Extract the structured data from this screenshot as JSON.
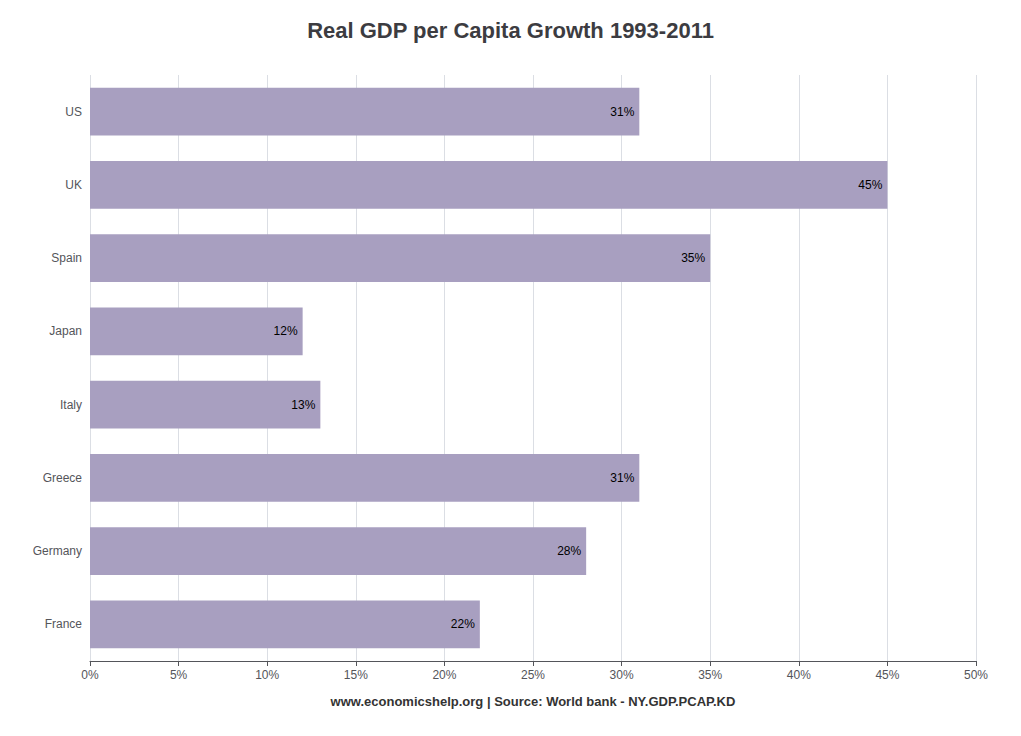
{
  "chart_data": {
    "type": "bar",
    "orientation": "horizontal",
    "title": "Real GDP per Capita Growth 1993-2011",
    "xlabel": "www.economicshelp.org | Source: World bank - NY.GDP.PCAP.KD",
    "categories": [
      "US",
      "UK",
      "Spain",
      "Japan",
      "Italy",
      "Greece",
      "Germany",
      "France"
    ],
    "values": [
      0.31,
      0.45,
      0.35,
      0.12,
      0.13,
      0.31,
      0.28,
      0.22
    ],
    "value_labels": [
      "31%",
      "45%",
      "35%",
      "12%",
      "13%",
      "31%",
      "28%",
      "22%"
    ],
    "data_labels": true,
    "color": "#a89fc0",
    "xlim": [
      0,
      0.5
    ],
    "xticks": [
      {
        "value": 0,
        "label": "0%"
      },
      {
        "value": 0.05,
        "label": "5%"
      },
      {
        "value": 0.1,
        "label": "10%"
      },
      {
        "value": 0.15,
        "label": "15%"
      },
      {
        "value": 0.2,
        "label": "20%"
      },
      {
        "value": 0.25,
        "label": "25%"
      },
      {
        "value": 0.3,
        "label": "30%"
      },
      {
        "value": 0.35,
        "label": "35%"
      },
      {
        "value": 0.4,
        "label": "40%"
      },
      {
        "value": 0.45,
        "label": "45%"
      },
      {
        "value": 0.5,
        "label": "50%"
      }
    ],
    "grid": true
  }
}
